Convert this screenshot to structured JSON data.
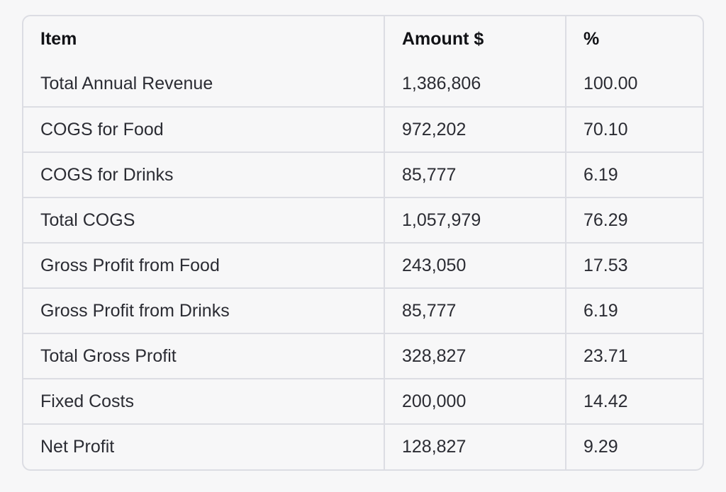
{
  "table": {
    "headers": [
      "Item",
      "Amount $",
      "%"
    ],
    "rows": [
      [
        "Total Annual Revenue",
        "1,386,806",
        "100.00"
      ],
      [
        "COGS for Food",
        "972,202",
        "70.10"
      ],
      [
        "COGS for Drinks",
        "85,777",
        "6.19"
      ],
      [
        "Total COGS",
        "1,057,979",
        "76.29"
      ],
      [
        "Gross Profit from Food",
        "243,050",
        "17.53"
      ],
      [
        "Gross Profit from Drinks",
        "85,777",
        "6.19"
      ],
      [
        "Total Gross Profit",
        "328,827",
        "23.71"
      ],
      [
        "Fixed Costs",
        "200,000",
        "14.42"
      ],
      [
        "Net Profit",
        "128,827",
        "9.29"
      ]
    ]
  }
}
